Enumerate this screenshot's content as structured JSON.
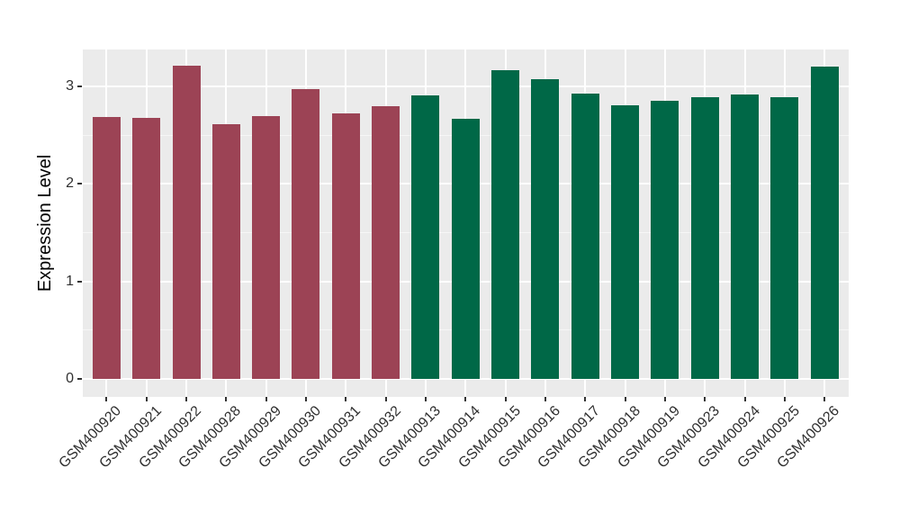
{
  "figure": {
    "background": "#FFFFFF"
  },
  "chart_data": {
    "type": "bar",
    "title": "",
    "xlabel": "",
    "ylabel": "Expression Level",
    "categories": [
      "GSM400920",
      "GSM400921",
      "GSM400922",
      "GSM400928",
      "GSM400929",
      "GSM400930",
      "GSM400931",
      "GSM400932",
      "GSM400913",
      "GSM400914",
      "GSM400915",
      "GSM400916",
      "GSM400917",
      "GSM400918",
      "GSM400919",
      "GSM400923",
      "GSM400924",
      "GSM400925",
      "GSM400926"
    ],
    "values": [
      2.69,
      2.68,
      3.21,
      2.61,
      2.7,
      2.97,
      2.72,
      2.8,
      2.91,
      2.67,
      3.17,
      3.07,
      2.93,
      2.81,
      2.85,
      2.89,
      2.92,
      2.89,
      3.2
    ],
    "bar_colors": [
      "#9C4355",
      "#9C4355",
      "#9C4355",
      "#9C4355",
      "#9C4355",
      "#9C4355",
      "#9C4355",
      "#9C4355",
      "#006847",
      "#006847",
      "#006847",
      "#006847",
      "#006847",
      "#006847",
      "#006847",
      "#006847",
      "#006847",
      "#006847",
      "#006847"
    ],
    "group_colors": {
      "left_group": "#9C4355",
      "right_group": "#006847"
    },
    "group_split_index": 8,
    "yticks": [
      0,
      1,
      2,
      3
    ],
    "ytick_labels": [
      "0",
      "1",
      "2",
      "3"
    ],
    "minor_yticks": [
      0.5,
      1.5,
      2.5
    ],
    "ylim": [
      -0.19,
      3.38
    ],
    "grid": true,
    "legend": false,
    "panel_background": "#EBEBEB",
    "grid_major_color": "#FFFFFF",
    "grid_minor_color": "#F6F6F6",
    "tick_color": "#333333",
    "tick_label_color": "#303030",
    "axis_title_color": "#000000"
  }
}
